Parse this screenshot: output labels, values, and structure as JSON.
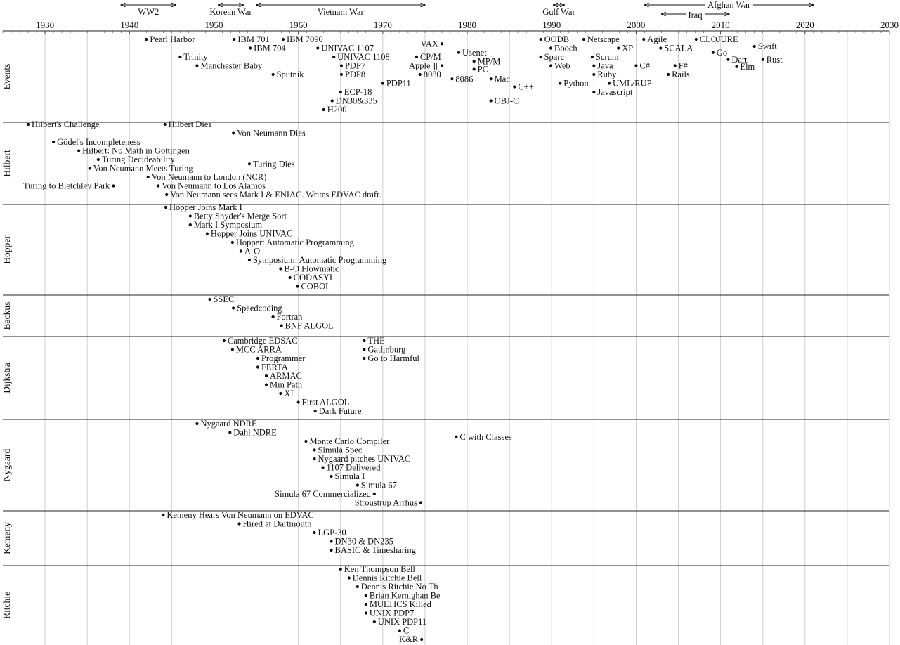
{
  "timeline": {
    "year_start": 1925,
    "year_end": 2030,
    "decade_ticks": [
      1930,
      1940,
      1950,
      1960,
      1970,
      1980,
      1990,
      2000,
      2010,
      2020,
      2030
    ],
    "periods": [
      {
        "label": "WW2",
        "start": 1939.0,
        "end": 1945.5,
        "row": 0
      },
      {
        "label": "Korean War",
        "start": 1950.5,
        "end": 1953.5,
        "row": 0
      },
      {
        "label": "Vietnam War",
        "start": 1955.0,
        "end": 1975.0,
        "row": 0
      },
      {
        "label": "Gulf War",
        "start": 1990.2,
        "end": 1991.5,
        "row": 0
      },
      {
        "label": "Afghan War",
        "start": 2001.0,
        "end": 2021.0,
        "row": 0
      },
      {
        "label": "Iraq",
        "start": 2003.0,
        "end": 2011.0,
        "row": 1
      }
    ],
    "bands": [
      {
        "name": "Events",
        "events": [
          {
            "year": 1942.0,
            "label": "Pearl Harbor",
            "row": 0
          },
          {
            "year": 1946.0,
            "label": "Trinity",
            "row": 2
          },
          {
            "year": 1948.0,
            "label": "Manchester Baby",
            "row": 3
          },
          {
            "year": 1957.0,
            "label": "Sputnik",
            "row": 4
          },
          {
            "year": 1952.4,
            "label": "IBM 701",
            "row": 0
          },
          {
            "year": 1958.2,
            "label": "IBM 7090",
            "row": 0
          },
          {
            "year": 1954.3,
            "label": "IBM 704",
            "row": 1
          },
          {
            "year": 1962.3,
            "label": "UNIVAC 1107",
            "row": 1
          },
          {
            "year": 1964.2,
            "label": "UNIVAC 1108",
            "row": 2
          },
          {
            "year": 1965.1,
            "label": "PDP7",
            "row": 3
          },
          {
            "year": 1965.1,
            "label": "PDP8",
            "row": 4
          },
          {
            "year": 1970.0,
            "label": "PDP11",
            "row": 5
          },
          {
            "year": 1965.0,
            "label": "ECP-18",
            "row": 6
          },
          {
            "year": 1964.0,
            "label": "DN30&335",
            "row": 7
          },
          {
            "year": 1963.0,
            "label": "H200",
            "row": 8
          },
          {
            "year": 1977.0,
            "label": "VAX",
            "row": 0.5,
            "side": "left"
          },
          {
            "year": 1974.0,
            "label": "CP/M",
            "row": 2
          },
          {
            "year": 1977.0,
            "label": "Apple ][",
            "row": 3,
            "side": "left"
          },
          {
            "year": 1974.4,
            "label": "8080",
            "row": 4
          },
          {
            "year": 1978.2,
            "label": "8086",
            "row": 4.5
          },
          {
            "year": 1979.0,
            "label": "Usenet",
            "row": 1.5
          },
          {
            "year": 1980.8,
            "label": "MP/M",
            "row": 2.5
          },
          {
            "year": 1980.8,
            "label": "PC",
            "row": 3.4
          },
          {
            "year": 1982.8,
            "label": "Mac",
            "row": 4.5
          },
          {
            "year": 1985.6,
            "label": "C++",
            "row": 5.4
          },
          {
            "year": 1982.8,
            "label": "OBJ-C",
            "row": 7
          },
          {
            "year": 1988.7,
            "label": "OODB",
            "row": 0
          },
          {
            "year": 1989.9,
            "label": "Booch",
            "row": 1
          },
          {
            "year": 1988.7,
            "label": "Sparc",
            "row": 2
          },
          {
            "year": 1989.9,
            "label": "Web",
            "row": 3
          },
          {
            "year": 1991.0,
            "label": "Python",
            "row": 5
          },
          {
            "year": 1993.8,
            "label": "Netscape",
            "row": 0
          },
          {
            "year": 1994.8,
            "label": "Scrum",
            "row": 2
          },
          {
            "year": 1995.0,
            "label": "Java",
            "row": 3
          },
          {
            "year": 1995.0,
            "label": "Ruby",
            "row": 4
          },
          {
            "year": 1996.8,
            "label": "UML/RUP",
            "row": 5
          },
          {
            "year": 1995.0,
            "label": "Javascript",
            "row": 6
          },
          {
            "year": 1997.9,
            "label": "XP",
            "row": 1
          },
          {
            "year": 2000.0,
            "label": "C#",
            "row": 3
          },
          {
            "year": 2000.9,
            "label": "Agile",
            "row": 0
          },
          {
            "year": 2002.9,
            "label": "SCALA",
            "row": 1
          },
          {
            "year": 2004.6,
            "label": "F#",
            "row": 3
          },
          {
            "year": 2003.8,
            "label": "Rails",
            "row": 4
          },
          {
            "year": 2007.1,
            "label": "CLOJURE",
            "row": 0
          },
          {
            "year": 2009.1,
            "label": "Go",
            "row": 1.5
          },
          {
            "year": 2010.9,
            "label": "Dart",
            "row": 2.3
          },
          {
            "year": 2011.9,
            "label": "Elm",
            "row": 3.1
          },
          {
            "year": 2014.0,
            "label": "Swift",
            "row": 0.8
          },
          {
            "year": 2015.0,
            "label": "Rust",
            "row": 2.3
          }
        ]
      },
      {
        "name": "Hilbert",
        "events": [
          {
            "year": 1928.0,
            "label": "Hilbert's Challenge",
            "row": 0
          },
          {
            "year": 1931.0,
            "label": "Gödel's Incompleteness",
            "row": 2
          },
          {
            "year": 1934.0,
            "label": "Hilbert: No Math in Gottingen",
            "row": 3
          },
          {
            "year": 1936.3,
            "label": "Turing Decideability",
            "row": 4
          },
          {
            "year": 1935.3,
            "label": "Von Neumann Meets Turing",
            "row": 5
          },
          {
            "year": 1938.1,
            "label": "Turing to Bletchley Park",
            "row": 7,
            "side": "left"
          },
          {
            "year": 1942.2,
            "label": "Von Neumann to London (NCR)",
            "row": 6
          },
          {
            "year": 1943.4,
            "label": "Von Neumann to Los Alamos",
            "row": 7
          },
          {
            "year": 1944.4,
            "label": "Von Neumann sees Mark I & ENIAC. Writes EDVAC draft.",
            "row": 8
          },
          {
            "year": 1944.2,
            "label": "Hilbert Dies",
            "row": 0
          },
          {
            "year": 1952.3,
            "label": "Von Neumann Dies",
            "row": 1
          },
          {
            "year": 1954.2,
            "label": "Turing Dies",
            "row": 4.5
          }
        ]
      },
      {
        "name": "Hopper",
        "events": [
          {
            "year": 1944.3,
            "label": "Hopper Joins Mark I",
            "row": 0
          },
          {
            "year": 1947.2,
            "label": "Betty Snyder's Merge Sort",
            "row": 1
          },
          {
            "year": 1947.2,
            "label": "Mark I Symposium",
            "row": 2
          },
          {
            "year": 1949.2,
            "label": "Hopper Joins UNIVAC",
            "row": 3
          },
          {
            "year": 1952.2,
            "label": "Hopper: Automatic Programming",
            "row": 4
          },
          {
            "year": 1953.2,
            "label": "A-O",
            "row": 5
          },
          {
            "year": 1954.2,
            "label": "Symposium: Automatic Programming",
            "row": 6
          },
          {
            "year": 1957.9,
            "label": "B-O Flowmatic",
            "row": 7
          },
          {
            "year": 1959.0,
            "label": "CODASYL",
            "row": 8
          },
          {
            "year": 1959.9,
            "label": "COBOL",
            "row": 9
          }
        ]
      },
      {
        "name": "Backus",
        "events": [
          {
            "year": 1949.5,
            "label": "SSEC",
            "row": 0
          },
          {
            "year": 1952.3,
            "label": "Speedcoding",
            "row": 1
          },
          {
            "year": 1957.0,
            "label": "Fortran",
            "row": 2
          },
          {
            "year": 1958.0,
            "label": "BNF ALGOL",
            "row": 3
          }
        ]
      },
      {
        "name": "Dijkstra",
        "events": [
          {
            "year": 1951.2,
            "label": "Cambridge EDSAC",
            "row": 0
          },
          {
            "year": 1952.2,
            "label": "MCC ARRA",
            "row": 1
          },
          {
            "year": 1955.2,
            "label": "Programmer",
            "row": 2
          },
          {
            "year": 1955.2,
            "label": "FERTA",
            "row": 3
          },
          {
            "year": 1956.2,
            "label": "ARMAC",
            "row": 4
          },
          {
            "year": 1956.2,
            "label": "Min Path",
            "row": 5
          },
          {
            "year": 1957.9,
            "label": "XI",
            "row": 6
          },
          {
            "year": 1960.0,
            "label": "First ALGOL",
            "row": 7
          },
          {
            "year": 1962.0,
            "label": "Dark Future",
            "row": 8
          },
          {
            "year": 1967.8,
            "label": "THE",
            "row": 0
          },
          {
            "year": 1967.8,
            "label": "Gatlinburg",
            "row": 1
          },
          {
            "year": 1967.8,
            "label": "Go to Harmful",
            "row": 2
          }
        ]
      },
      {
        "name": "Nygaard",
        "events": [
          {
            "year": 1948.0,
            "label": "Nygaard NDRE",
            "row": 0
          },
          {
            "year": 1951.9,
            "label": "Dahl NDRE",
            "row": 1
          },
          {
            "year": 1960.9,
            "label": "Monte Carlo Compiler",
            "row": 2
          },
          {
            "year": 1961.9,
            "label": "Simula Spec",
            "row": 3
          },
          {
            "year": 1961.9,
            "label": "Nygaard pitches UNIVAC",
            "row": 4
          },
          {
            "year": 1962.9,
            "label": "1107 Delivered",
            "row": 5
          },
          {
            "year": 1963.9,
            "label": "Simula I",
            "row": 6
          },
          {
            "year": 1967.0,
            "label": "Simula 67",
            "row": 7
          },
          {
            "year": 1969.0,
            "label": "Simula 67 Commercialized",
            "row": 8,
            "side": "left"
          },
          {
            "year": 1974.5,
            "label": "Stroustrup Arrhus",
            "row": 9,
            "side": "left"
          },
          {
            "year": 1978.7,
            "label": "C with Classes",
            "row": 1.5
          }
        ]
      },
      {
        "name": "Kemeny",
        "events": [
          {
            "year": 1944.0,
            "label": "Kemeny Hears Von Neumann on EDVAC",
            "row": 0
          },
          {
            "year": 1953.0,
            "label": "Hired at Dartmouth",
            "row": 1
          },
          {
            "year": 1961.9,
            "label": "LGP-30",
            "row": 2
          },
          {
            "year": 1963.9,
            "label": "DN30 & DN235",
            "row": 3
          },
          {
            "year": 1963.9,
            "label": "BASIC & Timesharing",
            "row": 4
          }
        ]
      },
      {
        "name": "Ritchie",
        "events": [
          {
            "year": 1965.0,
            "label": "Ken Thompson Bell",
            "row": 0
          },
          {
            "year": 1966.0,
            "label": "Dennis Ritchie Bell",
            "row": 1
          },
          {
            "year": 1967.0,
            "label": "Dennis Ritchie No Th",
            "row": 2
          },
          {
            "year": 1968.0,
            "label": "Brian Kernighan Be",
            "row": 3
          },
          {
            "year": 1968.0,
            "label": "MULTICS Killed",
            "row": 4
          },
          {
            "year": 1968.0,
            "label": "UNIX PDP7",
            "row": 5
          },
          {
            "year": 1969.0,
            "label": "UNIX PDP11",
            "row": 6
          },
          {
            "year": 1972.0,
            "label": "C",
            "row": 7
          },
          {
            "year": 1974.6,
            "label": "K&R",
            "row": 8,
            "side": "left"
          }
        ]
      }
    ]
  }
}
